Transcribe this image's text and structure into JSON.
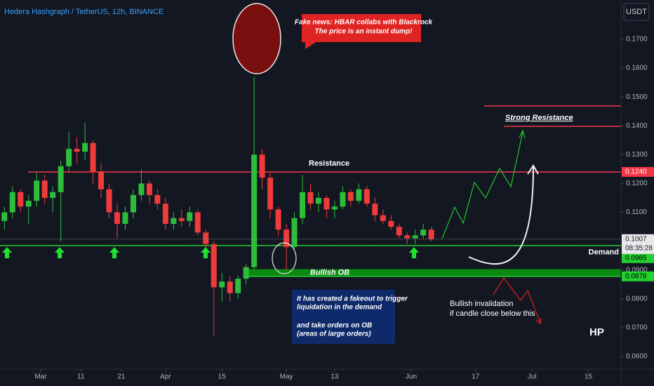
{
  "chart_data": {
    "type": "candlestick",
    "title": "Hedera Hashgraph / TetherUS, 12h, BINANCE",
    "currency": "USDT",
    "up_color": "#2ebd3b",
    "down_color": "#ef3b3b",
    "grid": false,
    "xlim": [
      -10.1,
      144.1
    ],
    "ylim": [
      0.0571,
      0.1836
    ],
    "xticks": [
      {
        "value": 0,
        "label": "Mar"
      },
      {
        "value": 10,
        "label": "11"
      },
      {
        "value": 20,
        "label": "21"
      },
      {
        "value": 31,
        "label": "Apr"
      },
      {
        "value": 45,
        "label": "15"
      },
      {
        "value": 61,
        "label": "May"
      },
      {
        "value": 73,
        "label": "13"
      },
      {
        "value": 92,
        "label": "Jun"
      },
      {
        "value": 108,
        "label": "17"
      },
      {
        "value": 122,
        "label": "Jul"
      },
      {
        "value": 136,
        "label": "15"
      }
    ],
    "yticks": [
      {
        "value": 0.06,
        "label": "0.0600"
      },
      {
        "value": 0.07,
        "label": "0.0700"
      },
      {
        "value": 0.08,
        "label": "0.0800"
      },
      {
        "value": 0.09,
        "label": "0.0900"
      },
      {
        "value": 0.11,
        "label": "0.1100"
      },
      {
        "value": 0.12,
        "label": "0.1200"
      },
      {
        "value": 0.13,
        "label": "0.1300"
      },
      {
        "value": 0.14,
        "label": "0.1400"
      },
      {
        "value": 0.15,
        "label": "0.1500"
      },
      {
        "value": 0.16,
        "label": "0.1600"
      },
      {
        "value": 0.17,
        "label": "0.1700"
      }
    ],
    "x": [
      -9,
      -7,
      -5,
      -3,
      -1,
      1,
      3,
      5,
      7,
      9,
      11,
      13,
      15,
      17,
      19,
      21,
      23,
      25,
      27,
      29,
      31,
      33,
      35,
      37,
      39,
      41,
      43,
      45,
      47,
      49,
      51,
      53,
      55,
      57,
      59,
      61,
      63,
      65,
      67,
      69,
      71,
      73,
      75,
      77,
      79,
      81,
      83,
      85,
      87,
      89,
      91,
      93,
      95,
      97
    ],
    "open": [
      0.107,
      0.11,
      0.117,
      0.112,
      0.114,
      0.121,
      0.115,
      0.117,
      0.126,
      0.132,
      0.131,
      0.134,
      0.124,
      0.118,
      0.11,
      0.106,
      0.11,
      0.116,
      0.12,
      0.116,
      0.113,
      0.106,
      0.108,
      0.107,
      0.11,
      0.103,
      0.099,
      0.084,
      0.086,
      0.082,
      0.087,
      0.091,
      0.13,
      0.122,
      0.111,
      0.104,
      0.098,
      0.108,
      0.117,
      0.113,
      0.115,
      0.111,
      0.112,
      0.117,
      0.114,
      0.118,
      0.113,
      0.109,
      0.107,
      0.105,
      0.102,
      0.101,
      0.102,
      0.104
    ],
    "high": [
      0.112,
      0.119,
      0.118,
      0.116,
      0.124,
      0.123,
      0.119,
      0.128,
      0.138,
      0.136,
      0.141,
      0.135,
      0.127,
      0.12,
      0.113,
      0.112,
      0.118,
      0.125,
      0.121,
      0.118,
      0.115,
      0.11,
      0.111,
      0.112,
      0.111,
      0.104,
      0.1,
      0.089,
      0.088,
      0.088,
      0.092,
      0.157,
      0.132,
      0.124,
      0.112,
      0.106,
      0.11,
      0.123,
      0.12,
      0.117,
      0.116,
      0.114,
      0.119,
      0.118,
      0.12,
      0.119,
      0.115,
      0.111,
      0.109,
      0.106,
      0.103,
      0.104,
      0.106,
      0.105
    ],
    "low": [
      0.104,
      0.108,
      0.11,
      0.106,
      0.112,
      0.113,
      0.11,
      0.1,
      0.124,
      0.127,
      0.128,
      0.12,
      0.115,
      0.108,
      0.101,
      0.104,
      0.108,
      0.114,
      0.113,
      0.111,
      0.104,
      0.104,
      0.105,
      0.105,
      0.102,
      0.097,
      0.067,
      0.079,
      0.079,
      0.08,
      0.085,
      0.09,
      0.118,
      0.108,
      0.102,
      0.09,
      0.097,
      0.106,
      0.111,
      0.11,
      0.108,
      0.108,
      0.111,
      0.112,
      0.113,
      0.112,
      0.107,
      0.106,
      0.104,
      0.101,
      0.099,
      0.099,
      0.101,
      0.1
    ],
    "close": [
      0.11,
      0.117,
      0.112,
      0.114,
      0.121,
      0.115,
      0.117,
      0.126,
      0.132,
      0.131,
      0.134,
      0.124,
      0.118,
      0.11,
      0.106,
      0.11,
      0.116,
      0.12,
      0.116,
      0.113,
      0.106,
      0.108,
      0.107,
      0.11,
      0.103,
      0.099,
      0.084,
      0.086,
      0.082,
      0.087,
      0.091,
      0.13,
      0.122,
      0.111,
      0.104,
      0.098,
      0.108,
      0.117,
      0.113,
      0.115,
      0.111,
      0.112,
      0.117,
      0.114,
      0.118,
      0.113,
      0.109,
      0.107,
      0.105,
      0.102,
      0.101,
      0.102,
      0.104,
      0.1007
    ],
    "last_price": {
      "value": 0.1007,
      "label": "0.1007",
      "countdown": "08:35:28"
    },
    "levels": [
      {
        "name": "Resistance",
        "value": 0.124,
        "label": "0.1240",
        "color": "#f23645"
      },
      {
        "name": "Demand",
        "value": 0.0985,
        "label": "0.0985",
        "color": "#22d12e"
      }
    ],
    "strong_resistance": {
      "name": "Strong Resistance",
      "values": [
        0.1469,
        0.1398
      ],
      "color": "#f23645"
    },
    "order_block": {
      "name": "Bullish OB",
      "top": 0.0903,
      "bottom": 0.0878,
      "label": "0.0878",
      "color": "#0b8a12"
    },
    "annotations": {
      "fake_news": [
        "Fake news: HBAR collabs with Blackrock",
        "The price is an instant dump!"
      ],
      "fakeout": [
        "It has created a fakeout to trigger",
        "liquidation in the demand",
        "and take orders on OB",
        "(areas of large orders)"
      ],
      "invalidation": [
        "Bullish invalidation",
        "if candle close below this"
      ],
      "signature": "HP"
    }
  }
}
